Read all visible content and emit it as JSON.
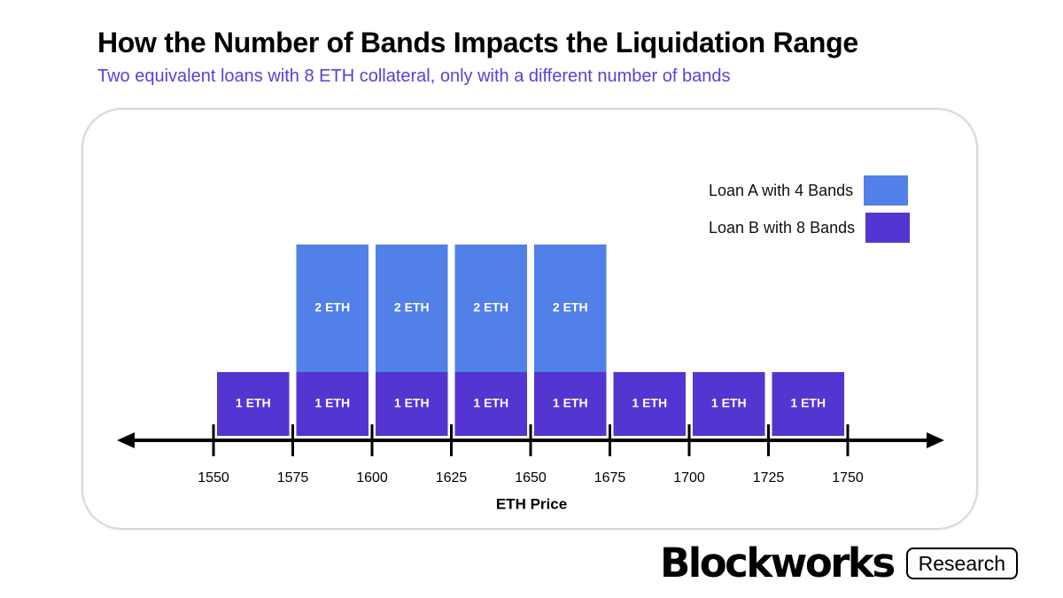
{
  "header": {
    "title": "How the Number of Bands Impacts the Liquidation Range",
    "subtitle": "Two equivalent loans with 8 ETH collateral, only with a different number of bands"
  },
  "colors": {
    "loan_a": "#5080e8",
    "loan_b": "#5435d1",
    "subtitle": "#5b3fd6",
    "axis": "#000000"
  },
  "chart_data": {
    "type": "bar",
    "stacked": true,
    "xlabel": "ETH Price",
    "ylabel": "",
    "x_ticks": [
      1550,
      1575,
      1600,
      1625,
      1650,
      1675,
      1700,
      1725,
      1750
    ],
    "bands": [
      {
        "from": 1550,
        "to": 1575,
        "loan_b": 1,
        "loan_a": 0
      },
      {
        "from": 1575,
        "to": 1600,
        "loan_b": 1,
        "loan_a": 2
      },
      {
        "from": 1600,
        "to": 1625,
        "loan_b": 1,
        "loan_a": 2
      },
      {
        "from": 1625,
        "to": 1650,
        "loan_b": 1,
        "loan_a": 2
      },
      {
        "from": 1650,
        "to": 1675,
        "loan_b": 1,
        "loan_a": 2
      },
      {
        "from": 1675,
        "to": 1700,
        "loan_b": 1,
        "loan_a": 0
      },
      {
        "from": 1700,
        "to": 1725,
        "loan_b": 1,
        "loan_a": 0
      },
      {
        "from": 1725,
        "to": 1750,
        "loan_b": 1,
        "loan_a": 0
      }
    ],
    "series": [
      {
        "key": "loan_a",
        "name": "Loan A with 4 Bands",
        "label_unit": "ETH"
      },
      {
        "key": "loan_b",
        "name": "Loan B with 8 Bands",
        "label_unit": "ETH"
      }
    ],
    "legend_position": "top-right"
  },
  "branding": {
    "logo": "Blockworks",
    "tag": "Research"
  }
}
